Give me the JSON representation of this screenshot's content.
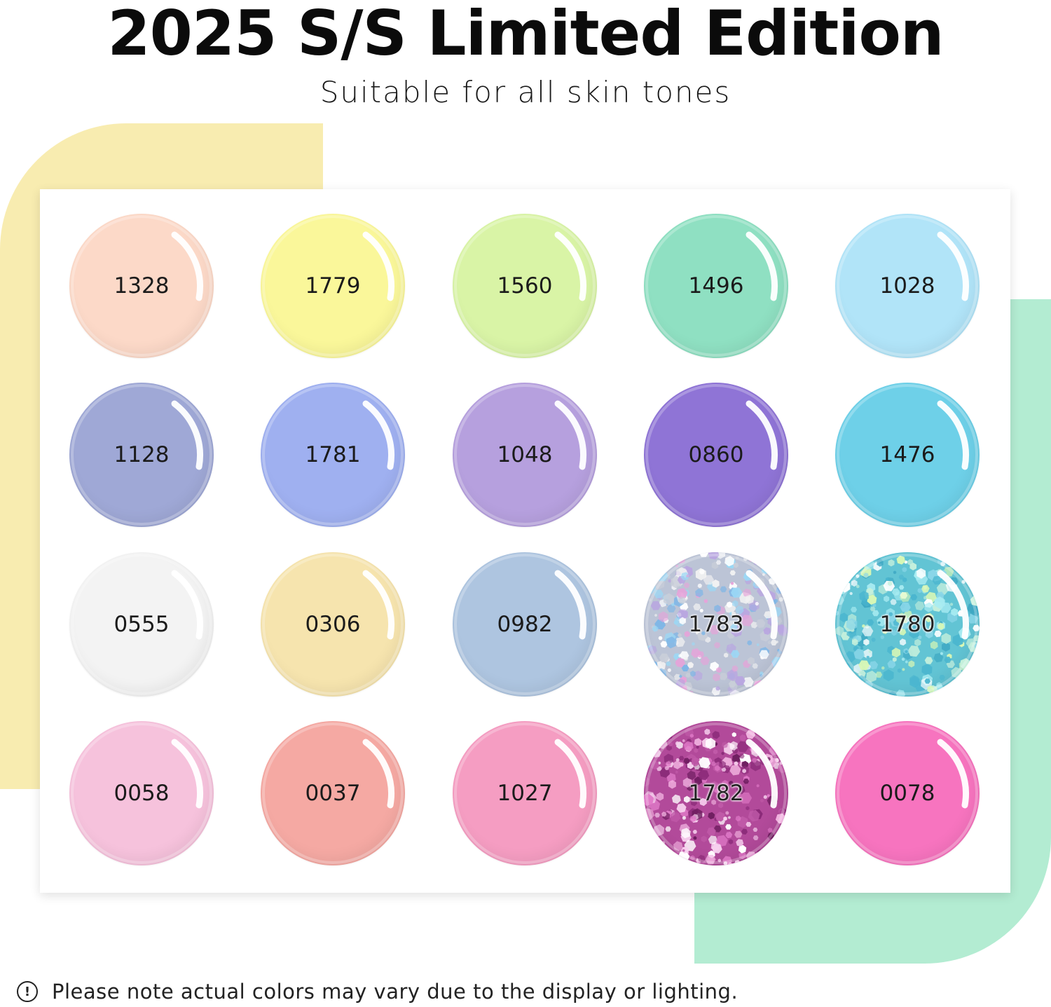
{
  "header": {
    "title": "2025 S/S Limited Edition",
    "subtitle": "Suitable for all skin tones"
  },
  "colors": {
    "background_yellow": "#f8ecb0",
    "background_green": "#b3ecd2"
  },
  "swatches": [
    {
      "code": "1328",
      "color": "#fcd9c8",
      "finish": "solid"
    },
    {
      "code": "1779",
      "color": "#faf79a",
      "finish": "solid"
    },
    {
      "code": "1560",
      "color": "#d9f4a6",
      "finish": "solid"
    },
    {
      "code": "1496",
      "color": "#8fe0c2",
      "finish": "solid"
    },
    {
      "code": "1028",
      "color": "#b1e4f8",
      "finish": "solid"
    },
    {
      "code": "1128",
      "color": "#9fa8d6",
      "finish": "solid"
    },
    {
      "code": "1781",
      "color": "#9fb0f0",
      "finish": "solid"
    },
    {
      "code": "1048",
      "color": "#b6a0de",
      "finish": "solid"
    },
    {
      "code": "0860",
      "color": "#8f74d6",
      "finish": "solid"
    },
    {
      "code": "1476",
      "color": "#6ed0e8",
      "finish": "solid"
    },
    {
      "code": "0555",
      "color": "#f3f3f3",
      "finish": "solid"
    },
    {
      "code": "0306",
      "color": "#f6e4ae",
      "finish": "solid"
    },
    {
      "code": "0982",
      "color": "#aec5e0",
      "finish": "solid"
    },
    {
      "code": "1783",
      "color": "#bcc4d6",
      "finish": "glitter"
    },
    {
      "code": "1780",
      "color": "#62c4d4",
      "finish": "glitter"
    },
    {
      "code": "0058",
      "color": "#f6c2dc",
      "finish": "solid"
    },
    {
      "code": "0037",
      "color": "#f5a9a3",
      "finish": "solid"
    },
    {
      "code": "1027",
      "color": "#f59dc2",
      "finish": "solid"
    },
    {
      "code": "1782",
      "color": "#b24a9a",
      "finish": "glitter"
    },
    {
      "code": "0078",
      "color": "#f774bf",
      "finish": "solid"
    }
  ],
  "footer": {
    "icon": "info-icon",
    "note": "Please note actual colors may vary due to the display or lighting."
  }
}
